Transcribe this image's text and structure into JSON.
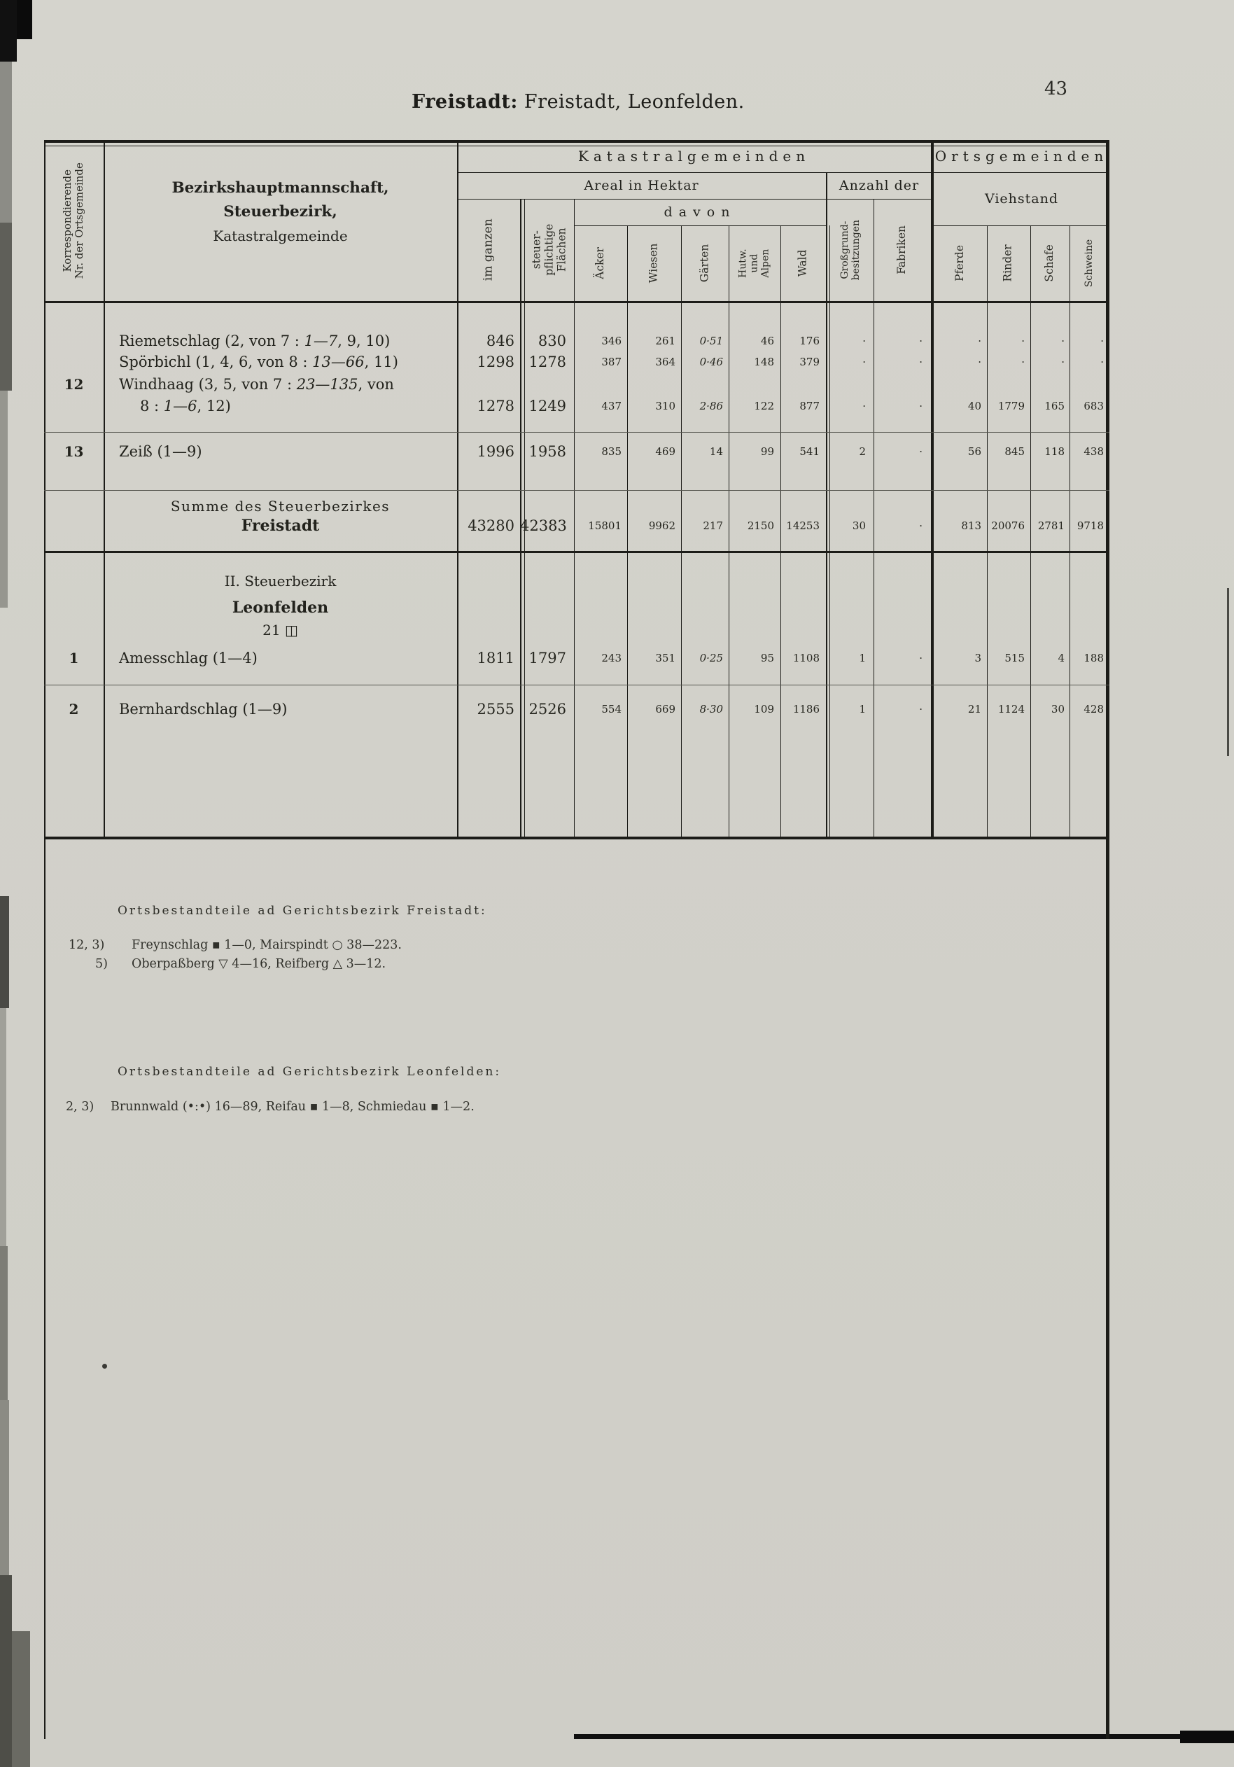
{
  "page": {
    "number": "43",
    "title_bold": "Freistadt:",
    "title_rest": " Freistadt, Leonfelden."
  },
  "header": {
    "korr": "Korrespondierende\nNr. der Ortsgemeinde",
    "bh1": "Bezirkshauptmannschaft,",
    "bh2": "Steuerbezirk,",
    "bh3": "Katastralgemeinde",
    "group_katastral": "Katastralgemeinden",
    "group_orts": "Ortsgemeinden",
    "areal": "Areal in Hektar",
    "anzahl": "Anzahl der",
    "viehstand": "Viehstand",
    "davon": "davon",
    "im_ganzen": "im ganzen",
    "steuerpfl": "steuer-\npflichtige\nFlächen",
    "aecker": "Äcker",
    "wiesen": "Wiesen",
    "gaerten": "Gärten",
    "hutw": "Hutw.\nund\nAlpen",
    "wald": "Wald",
    "grossgrund": "Großgrund-\nbesitzungen",
    "fabriken": "Fabriken",
    "pferde": "Pferde",
    "rinder": "Rinder",
    "schafe": "Schafe",
    "schweine": "Schweine"
  },
  "body": {
    "columns": [
      "im_ganzen",
      "steuerpflichtig",
      "aecker",
      "wiesen",
      "gaerten",
      "hutw_alpen",
      "wald",
      "grossgrundbesitzungen",
      "fabriken",
      "pferde",
      "rinder",
      "schafe",
      "schweine"
    ],
    "blocks": [
      {
        "nr": "12",
        "name_lines": [
          "Riemetschlag (2, von 7 : *1—7*, 9, 10)",
          "Spörbichl (1, 4, 6, von 8 : *13—66*, 11)",
          "Windhaag (3, 5, von 7 : *23—135*, von",
          "8 : *1—6*, 12)"
        ],
        "value_rows": [
          {
            "line": 0,
            "cells": [
              "846",
              "830",
              "346",
              "261",
              "*0·51*",
              "46",
              "176",
              "·",
              "·",
              "·",
              "·",
              "·",
              "·"
            ]
          },
          {
            "line": 1,
            "cells": [
              "1298",
              "1278",
              "387",
              "364",
              "*0·46*",
              "148",
              "379",
              "·",
              "·",
              "·",
              "·",
              "·",
              "·"
            ]
          },
          {
            "line": 3,
            "cells": [
              "1278",
              "1249",
              "437",
              "310",
              "*2·86*",
              "122",
              "877",
              "·",
              "·",
              "40",
              "1779",
              "165",
              "683"
            ]
          }
        ]
      },
      {
        "nr": "13",
        "name_lines": [
          "Zeiß (1—9)"
        ],
        "value_rows": [
          {
            "line": 0,
            "cells": [
              "1996",
              "1958",
              "835",
              "469",
              "14",
              "99",
              "541",
              "2",
              "·",
              "56",
              "845",
              "118",
              "438"
            ]
          }
        ]
      },
      {
        "title_lines": [
          "Summe des Steuerbezirkes",
          "Freistadt"
        ],
        "value_rows": [
          {
            "line": 0,
            "cells": [
              "43280",
              "42383",
              "15801",
              "9962",
              "217",
              "2150",
              "14253",
              "30",
              "·",
              "813",
              "20076",
              "2781",
              "9718"
            ]
          }
        ]
      },
      {
        "section_lines": [
          "II. Steuerbezirk",
          "Leonfelden",
          "21 ◫"
        ],
        "nr": "1",
        "name_lines": [
          "Amesschlag (1—4)"
        ],
        "value_rows": [
          {
            "line": 0,
            "cells": [
              "1811",
              "1797",
              "243",
              "351",
              "*0·25*",
              "95",
              "1108",
              "1",
              "·",
              "3",
              "515",
              "4",
              "188"
            ]
          }
        ]
      },
      {
        "nr": "2",
        "name_lines": [
          "Bernhardschlag (1—9)"
        ],
        "value_rows": [
          {
            "line": 0,
            "cells": [
              "2555",
              "2526",
              "554",
              "669",
              "*8·30*",
              "109",
              "1186",
              "1",
              "·",
              "21",
              "1124",
              "30",
              "428"
            ]
          }
        ]
      }
    ]
  },
  "footnotes": {
    "section1": {
      "heading": "Ortsbestandteile ad Gerichtsbezirk Freistadt:",
      "items": [
        {
          "prefix": "12, 3)",
          "text": "Freynschlag ▪ 1—0, Mairspindt ○ 38—223."
        },
        {
          "prefix": "5)",
          "text": "Oberpaßberg ▽ 4—16, Reifberg △ 3—12."
        }
      ]
    },
    "section2": {
      "heading": "Ortsbestandteile ad Gerichtsbezirk Leonfelden:",
      "items": [
        {
          "prefix": "2, 3)",
          "text": "Brunnwald (•:•) 16—89, Reifau ▪ 1—8, Schmiedau ▪ 1—2."
        }
      ]
    }
  }
}
